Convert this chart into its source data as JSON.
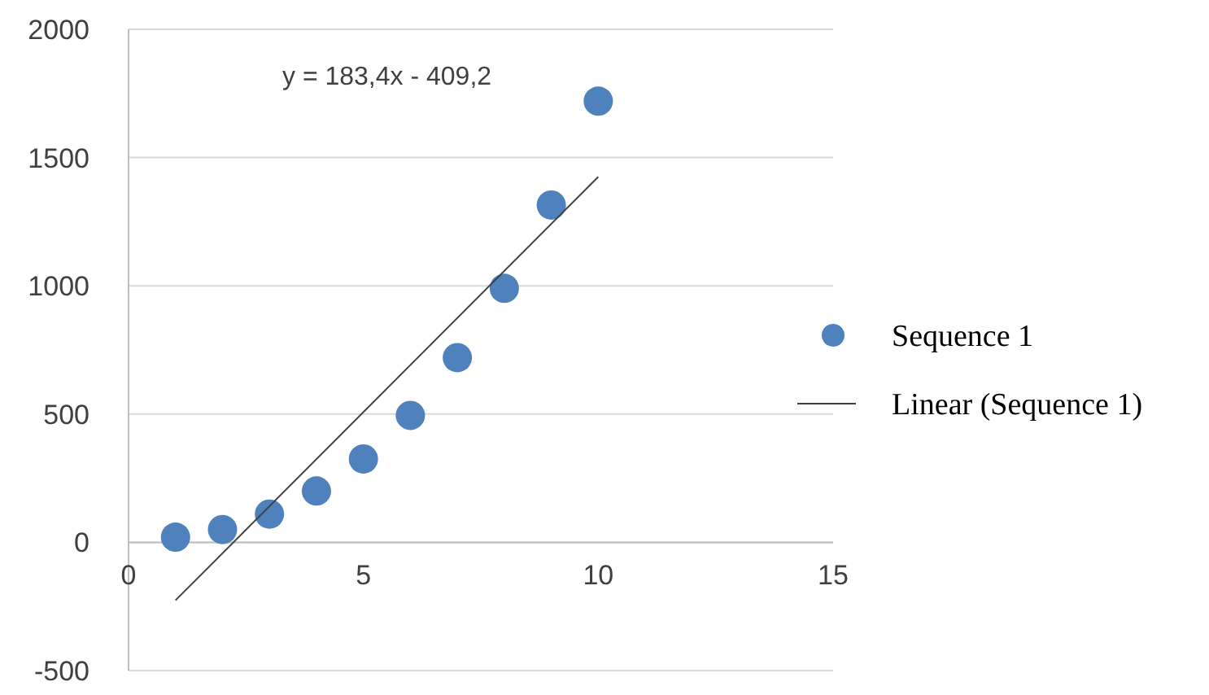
{
  "chart_data": {
    "type": "scatter",
    "xlim": [
      0,
      15
    ],
    "ylim": [
      -500,
      2000
    ],
    "xticks": [
      0,
      5,
      10,
      15
    ],
    "yticks": [
      -500,
      0,
      500,
      1000,
      1500,
      2000
    ],
    "grid": "y",
    "legend": "right",
    "annotations": [
      "y = 183,4x - 409,2"
    ],
    "series": [
      {
        "name": "Sequence 1",
        "marker": "circle",
        "color": "#4f81bd",
        "x": [
          1,
          2,
          3,
          4,
          5,
          6,
          7,
          8,
          9,
          10
        ],
        "values": [
          20,
          50,
          110,
          200,
          325,
          495,
          720,
          990,
          1315,
          1720
        ]
      },
      {
        "name": "Linear (Sequence 1)",
        "type": "line",
        "line_style": "solid",
        "color": "#404040",
        "x": [
          1,
          10
        ],
        "values": [
          -226,
          1425
        ]
      }
    ]
  }
}
